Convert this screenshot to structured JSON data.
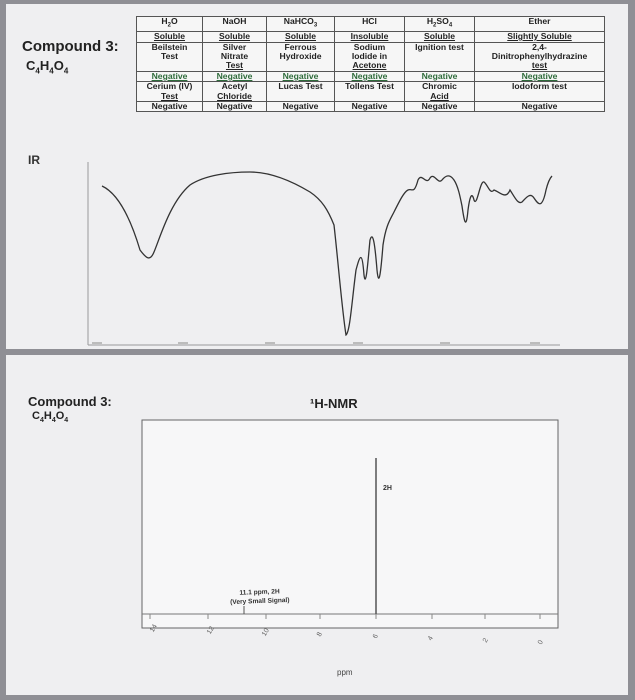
{
  "compound": {
    "title": "Compound 3:",
    "formula_prefix": "C",
    "formula_sub1": "4",
    "formula_h": "H",
    "formula_sub2": "4",
    "formula_o": "O",
    "formula_sub3": "4"
  },
  "table": {
    "headers": [
      "H2O",
      "NaOH",
      "NaHCO3",
      "HCl",
      "H2SO4",
      "Ether"
    ],
    "solubility": [
      "Soluble",
      "Soluble",
      "Soluble",
      "Insoluble",
      "Soluble",
      "Slightly Soluble"
    ],
    "row2": [
      {
        "line1": "Beilstein",
        "line2": "Test"
      },
      {
        "line1": "Silver",
        "line2": "Nitrate",
        "line3": "Test"
      },
      {
        "line1": "Ferrous",
        "line2": "Hydroxide"
      },
      {
        "line1": "Sodium",
        "line2": "Iodide in",
        "line3": "Acetone"
      },
      {
        "line1": "Ignition test"
      },
      {
        "line1": "2,4-",
        "line2": "Dinitrophenylhydrazine",
        "line3": "test"
      }
    ],
    "row2_results": [
      "Negative",
      "Negative",
      "Negative",
      "Negative",
      "Negative",
      "Negative"
    ],
    "row3": [
      {
        "line1": "Cerium (IV)",
        "line2": "Test"
      },
      {
        "line1": "Acetyl",
        "line2": "Chloride"
      },
      {
        "line1": "Lucas Test"
      },
      {
        "line1": "Tollens Test"
      },
      {
        "line1": "Chromic",
        "line2": "Acid"
      },
      {
        "line1": "Iodoform test"
      }
    ],
    "row3_results": [
      "Negative",
      "Negative",
      "Negative",
      "Negative",
      "Negative",
      "Negative"
    ]
  },
  "ir": {
    "label": "IR"
  },
  "nmr": {
    "title": "¹H-NMR",
    "annotation_2h": "2H",
    "annotation_small_line1": "11.1 ppm, 2H",
    "annotation_small_line2": "(Very Small Signal)",
    "axis_label": "ppm",
    "ticks": [
      "14",
      "12",
      "10",
      "8",
      "6",
      "4",
      "2",
      "0"
    ]
  }
}
